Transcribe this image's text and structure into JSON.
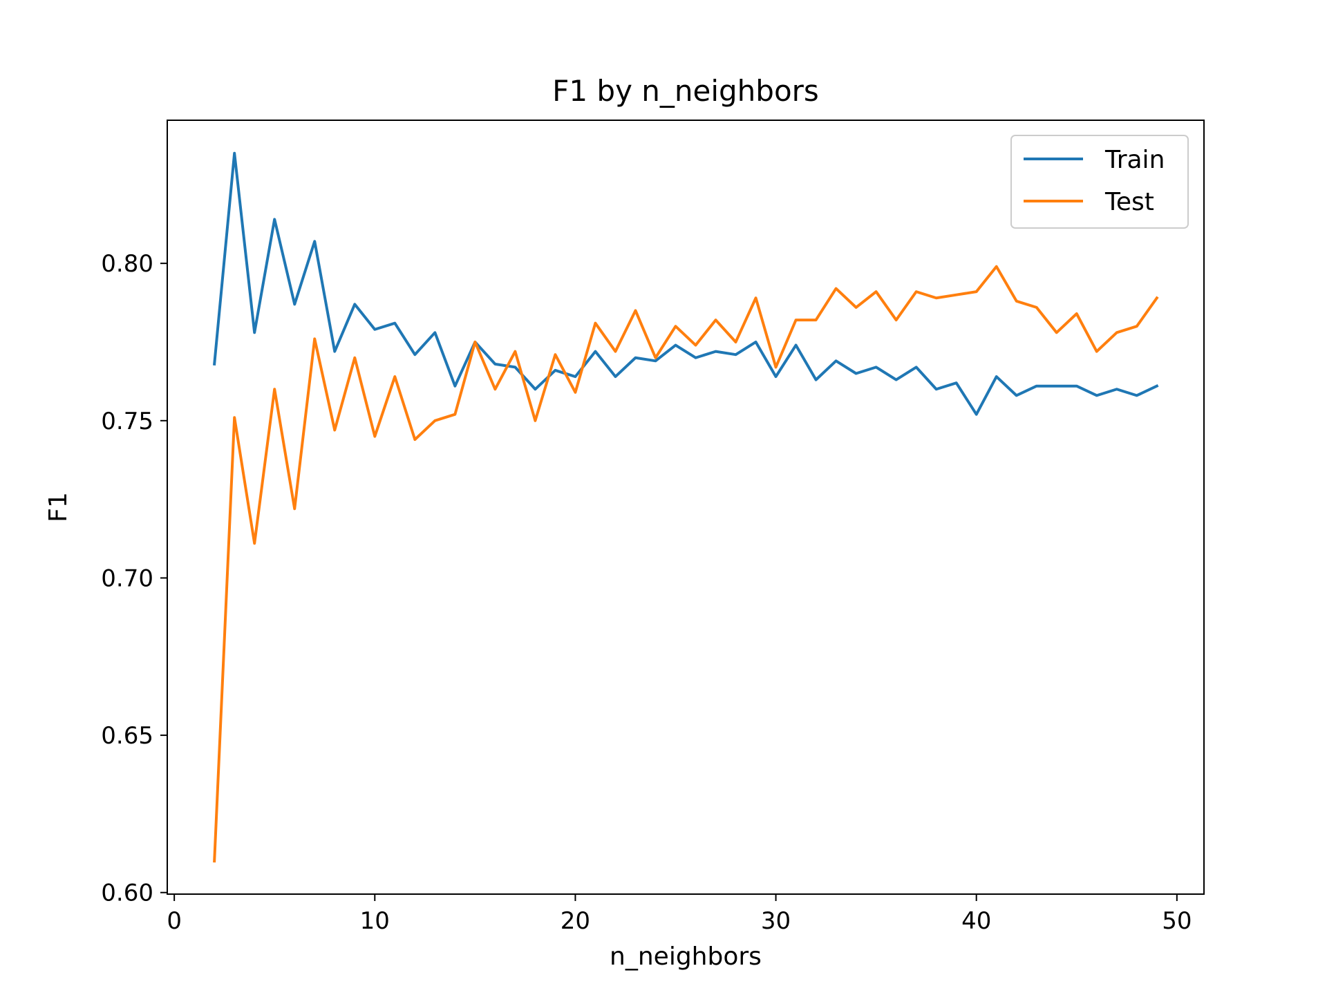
{
  "chart_data": {
    "type": "line",
    "title": "F1 by n_neighbors",
    "xlabel": "n_neighbors",
    "ylabel": "F1",
    "xlim": [
      -0.35,
      51.35
    ],
    "ylim": [
      0.5995,
      0.8455
    ],
    "xticks": [
      0,
      10,
      20,
      30,
      40,
      50
    ],
    "xtick_labels": [
      "0",
      "10",
      "20",
      "30",
      "40",
      "50"
    ],
    "yticks": [
      0.6,
      0.65,
      0.7,
      0.75,
      0.8
    ],
    "ytick_labels": [
      "0.60",
      "0.65",
      "0.70",
      "0.75",
      "0.80"
    ],
    "grid": false,
    "legend_position": "top-right",
    "x": [
      2,
      3,
      4,
      5,
      6,
      7,
      8,
      9,
      10,
      11,
      12,
      13,
      14,
      15,
      16,
      17,
      18,
      19,
      20,
      21,
      22,
      23,
      24,
      25,
      26,
      27,
      28,
      29,
      30,
      31,
      32,
      33,
      34,
      35,
      36,
      37,
      38,
      39,
      40,
      41,
      42,
      43,
      44,
      45,
      46,
      47,
      48,
      49
    ],
    "series": [
      {
        "name": "Train",
        "color": "#1f77b4",
        "values": [
          0.768,
          0.835,
          0.778,
          0.814,
          0.787,
          0.807,
          0.772,
          0.787,
          0.779,
          0.781,
          0.771,
          0.778,
          0.761,
          0.775,
          0.768,
          0.767,
          0.76,
          0.766,
          0.764,
          0.772,
          0.764,
          0.77,
          0.769,
          0.774,
          0.77,
          0.772,
          0.771,
          0.775,
          0.764,
          0.774,
          0.763,
          0.769,
          0.765,
          0.767,
          0.763,
          0.767,
          0.76,
          0.762,
          0.752,
          0.764,
          0.758,
          0.761,
          0.761,
          0.761,
          0.758,
          0.76,
          0.758,
          0.761
        ]
      },
      {
        "name": "Test",
        "color": "#ff7f0e",
        "values": [
          0.61,
          0.751,
          0.711,
          0.76,
          0.722,
          0.776,
          0.747,
          0.77,
          0.745,
          0.764,
          0.744,
          0.75,
          0.752,
          0.775,
          0.76,
          0.772,
          0.75,
          0.771,
          0.759,
          0.781,
          0.772,
          0.785,
          0.77,
          0.78,
          0.774,
          0.782,
          0.775,
          0.789,
          0.767,
          0.782,
          0.782,
          0.792,
          0.786,
          0.791,
          0.782,
          0.791,
          0.789,
          0.79,
          0.791,
          0.799,
          0.788,
          0.786,
          0.778,
          0.784,
          0.772,
          0.778,
          0.78,
          0.789
        ]
      }
    ]
  }
}
